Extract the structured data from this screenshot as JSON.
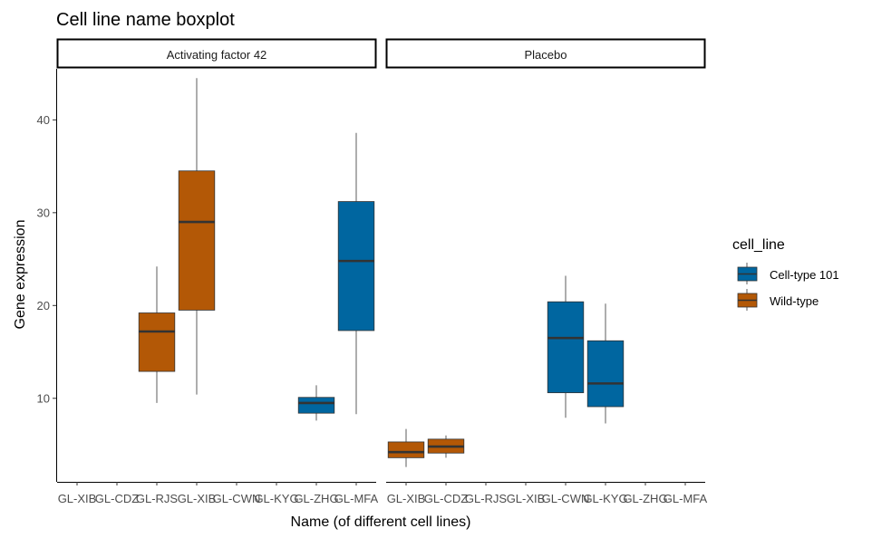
{
  "chart_data": {
    "type": "boxplot",
    "title": "Cell line name boxplot",
    "xlabel": "Name (of different cell lines)",
    "ylabel": "Gene expression",
    "ylim": [
      1,
      45.5
    ],
    "yticks": [
      10,
      20,
      30,
      40
    ],
    "categories": [
      "GL-XIB",
      "GL-CDZ",
      "GL-RJS",
      "GL-XIB",
      "GL-CWN",
      "GL-KYG",
      "GL-ZHG",
      "GL-MFA"
    ],
    "legend": {
      "title": "cell_line",
      "position": "right",
      "entries": [
        {
          "name": "Cell-type 101",
          "color": "#0066A0"
        },
        {
          "name": "Wild-type",
          "color": "#B35806"
        }
      ]
    },
    "panels": [
      {
        "label": "Activating factor 42",
        "boxes": [
          {
            "category_index": 2,
            "group": "Wild-type",
            "whisker_low": 9.5,
            "q1": 12.9,
            "median": 17.2,
            "q3": 19.2,
            "whisker_high": 24.2
          },
          {
            "category_index": 3,
            "group": "Wild-type",
            "whisker_low": 10.4,
            "q1": 19.5,
            "median": 29.0,
            "q3": 34.5,
            "whisker_high": 44.5
          },
          {
            "category_index": 6,
            "group": "Cell-type 101",
            "whisker_low": 7.6,
            "q1": 8.4,
            "median": 9.5,
            "q3": 10.1,
            "whisker_high": 11.4
          },
          {
            "category_index": 7,
            "group": "Cell-type 101",
            "whisker_low": 8.3,
            "q1": 17.3,
            "median": 24.8,
            "q3": 31.2,
            "whisker_high": 38.6
          }
        ]
      },
      {
        "label": "Placebo",
        "boxes": [
          {
            "category_index": 0,
            "group": "Wild-type",
            "whisker_low": 2.6,
            "q1": 3.6,
            "median": 4.2,
            "q3": 5.3,
            "whisker_high": 6.7
          },
          {
            "category_index": 1,
            "group": "Wild-type",
            "whisker_low": 3.6,
            "q1": 4.1,
            "median": 4.8,
            "q3": 5.6,
            "whisker_high": 6.0
          },
          {
            "category_index": 4,
            "group": "Cell-type 101",
            "whisker_low": 7.9,
            "q1": 10.6,
            "median": 16.5,
            "q3": 20.4,
            "whisker_high": 23.2
          },
          {
            "category_index": 5,
            "group": "Cell-type 101",
            "whisker_low": 7.3,
            "q1": 9.1,
            "median": 11.6,
            "q3": 16.2,
            "whisker_high": 20.2
          }
        ]
      }
    ]
  }
}
